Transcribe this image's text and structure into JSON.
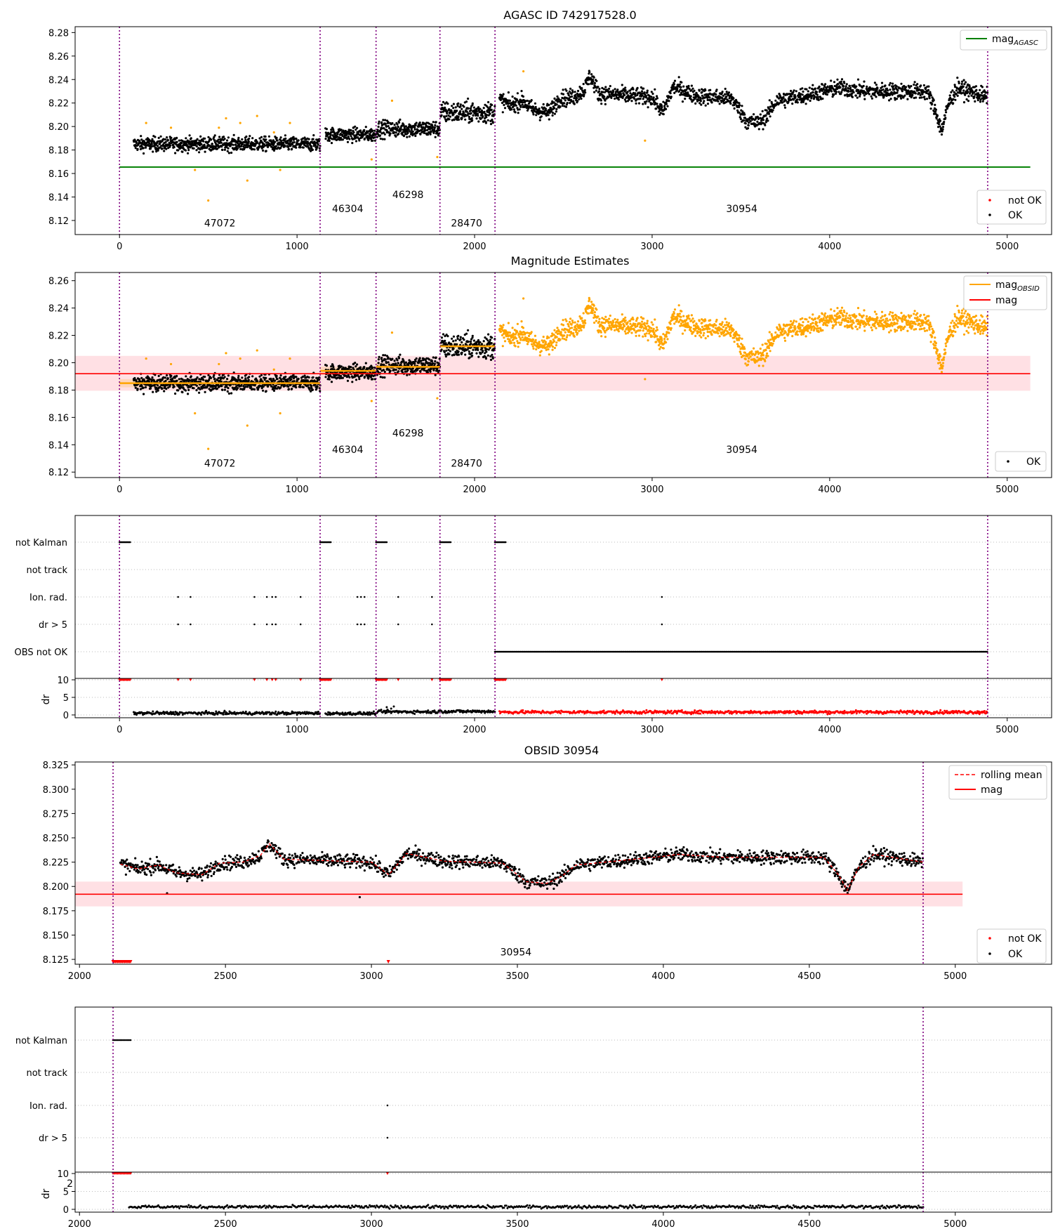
{
  "chart_data": [
    {
      "type": "scatter",
      "title": "AGASC ID 742917528.0",
      "xlim": [
        -250,
        5250
      ],
      "ylim": [
        8.108,
        8.285
      ],
      "xticks": [
        0,
        1000,
        2000,
        3000,
        4000,
        5000
      ],
      "yticks": [
        8.12,
        8.14,
        8.16,
        8.18,
        8.2,
        8.22,
        8.24,
        8.26,
        8.28
      ],
      "obsid_boundaries": [
        0,
        1130,
        1445,
        1805,
        2115,
        4890
      ],
      "obsid_labels": [
        {
          "text": "47072",
          "x": 565,
          "y": 8.115
        },
        {
          "text": "46304",
          "x": 1285,
          "y": 8.127
        },
        {
          "text": "46298",
          "x": 1625,
          "y": 8.139
        },
        {
          "text": "28470",
          "x": 1955,
          "y": 8.115
        },
        {
          "text": "30954",
          "x": 3505,
          "y": 8.127
        }
      ],
      "lines": [
        {
          "name": "mag_AGASC",
          "y": 8.1655,
          "x": [
            0,
            5130
          ],
          "color": "#008000"
        }
      ],
      "series": [
        {
          "name": "not OK",
          "color": "#ff0000"
        },
        {
          "name": "OK",
          "color": "#000000"
        }
      ],
      "segments": [
        {
          "x": [
            80,
            1130
          ],
          "y_mean": 8.185,
          "y_spread": 0.006
        },
        {
          "x": [
            1160,
            1445
          ],
          "y_mean": 8.193,
          "y_spread": 0.006
        },
        {
          "x": [
            1450,
            1805
          ],
          "y_mean": 8.198,
          "y_spread": 0.007
        },
        {
          "x": [
            1810,
            2115
          ],
          "y_mean": 8.212,
          "y_spread": 0.009
        },
        {
          "x": [
            2140,
            4890
          ],
          "y_mean": 8.226,
          "y_spread": 0.007
        }
      ],
      "legend_upper": "top-right",
      "legend_lower": "bottom-right"
    },
    {
      "type": "scatter",
      "title": "Magnitude Estimates",
      "xlim": [
        -250,
        5250
      ],
      "ylim": [
        8.116,
        8.266
      ],
      "xticks": [
        0,
        1000,
        2000,
        3000,
        4000,
        5000
      ],
      "yticks": [
        8.12,
        8.14,
        8.16,
        8.18,
        8.2,
        8.22,
        8.24,
        8.26
      ],
      "obsid_boundaries": [
        0,
        1130,
        1445,
        1805,
        2115,
        4890
      ],
      "obsid_labels": [
        {
          "text": "47072",
          "x": 565,
          "y": 8.124
        },
        {
          "text": "46304",
          "x": 1285,
          "y": 8.134
        },
        {
          "text": "46298",
          "x": 1625,
          "y": 8.146
        },
        {
          "text": "28470",
          "x": 1955,
          "y": 8.124
        },
        {
          "text": "30954",
          "x": 3505,
          "y": 8.134
        }
      ],
      "obsid_means": [
        {
          "x": [
            0,
            1130
          ],
          "y": 8.185
        },
        {
          "x": [
            1130,
            1445
          ],
          "y": 8.194
        },
        {
          "x": [
            1445,
            1805
          ],
          "y": 8.197
        },
        {
          "x": [
            1805,
            2115
          ],
          "y": 8.212
        }
      ],
      "mag": {
        "y": 8.192,
        "band": [
          8.1795,
          8.205
        ],
        "x": [
          -250,
          5130
        ]
      },
      "series": [
        {
          "name": "mag_OBSID",
          "color": "#ffa500"
        },
        {
          "name": "mag",
          "color": "#ff0000"
        },
        {
          "name": "OK",
          "color": "#000000"
        }
      ],
      "legend_upper": "top-right",
      "legend_lower": "bottom-right"
    },
    {
      "type": "scatter",
      "xlim": [
        -250,
        5250
      ],
      "categories": [
        "not Kalman",
        "not track",
        "Ion. rad.",
        "dr > 5",
        "OBS not OK"
      ],
      "flags": {
        "not Kalman": [
          [
            0,
            60
          ],
          [
            1130,
            1190
          ],
          [
            1445,
            1505
          ],
          [
            1805,
            1865
          ],
          [
            2115,
            2175
          ]
        ],
        "Ion. rad.": [
          330,
          400,
          760,
          830,
          860,
          880,
          1020,
          1340,
          1360,
          1380,
          1570,
          1760,
          3055
        ],
        "dr > 5": [
          330,
          400,
          760,
          830,
          860,
          880,
          1020,
          1340,
          1360,
          1380,
          1570,
          1760,
          3055
        ],
        "OBS not OK": [
          [
            2115,
            4890
          ]
        ]
      },
      "dr_axis": {
        "ylabel": "dr",
        "yticks": [
          0,
          5,
          10
        ],
        "ylim": [
          0,
          10
        ]
      },
      "xticks": [
        0,
        1000,
        2000,
        3000,
        4000,
        5000
      ],
      "obsid_boundaries": [
        0,
        1130,
        1445,
        1805,
        2115,
        4890
      ]
    },
    {
      "type": "scatter",
      "title": "OBSID 30954",
      "xlim": [
        1985,
        5330
      ],
      "ylim": [
        8.12,
        8.328
      ],
      "xticks": [
        2000,
        2500,
        3000,
        3500,
        4000,
        4500,
        5000
      ],
      "yticks": [
        8.125,
        8.15,
        8.175,
        8.2,
        8.225,
        8.25,
        8.275,
        8.3,
        8.325
      ],
      "obsid_boundaries": [
        2115,
        4890
      ],
      "obsid_labels": [
        {
          "text": "30954",
          "x": 3495,
          "y": 8.129
        }
      ],
      "mag": {
        "y": 8.192,
        "band": [
          8.1795,
          8.205
        ],
        "x": [
          1985,
          5025
        ]
      },
      "series": [
        {
          "name": "rolling mean",
          "color": "#ff0000"
        },
        {
          "name": "mag",
          "color": "#ff0000"
        },
        {
          "name": "not OK",
          "color": "#ff0000"
        },
        {
          "name": "OK",
          "color": "#000000"
        }
      ],
      "legend_upper": "top-right",
      "legend_lower": "bottom-right"
    },
    {
      "type": "scatter",
      "xlim": [
        1985,
        5330
      ],
      "categories": [
        "not Kalman",
        "not track",
        "Ion. rad.",
        "dr > 5"
      ],
      "flags": {
        "not Kalman": [
          [
            2115,
            2175
          ]
        ],
        "Ion. rad.": [
          3055
        ],
        "dr > 5": [
          3055
        ]
      },
      "dr_axis": {
        "ylabel": "dr",
        "yticks": [
          0,
          5,
          10
        ],
        "ylim": [
          0,
          10
        ]
      },
      "xticks": [
        2000,
        2500,
        3000,
        3500,
        4000,
        4500,
        5000
      ],
      "obsid_boundaries": [
        2115,
        4890
      ],
      "stray_label": "2"
    }
  ]
}
